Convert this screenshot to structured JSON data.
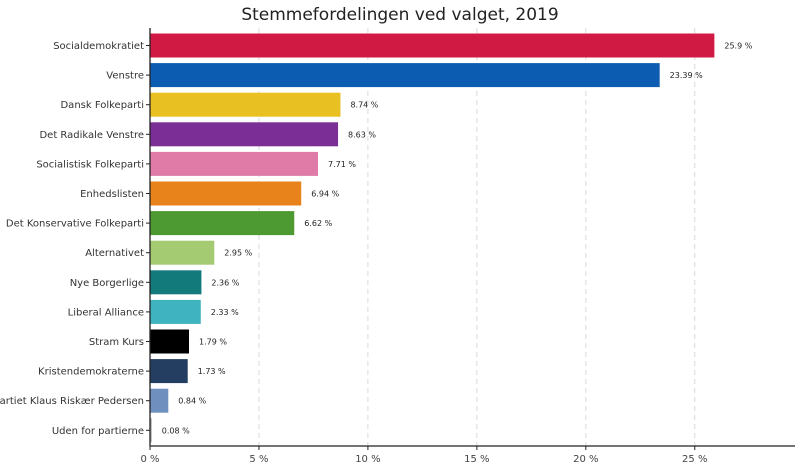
{
  "chart_data": {
    "type": "bar",
    "orientation": "horizontal",
    "title": "Stemmefordelingen ved valget, 2019",
    "xlabel": "",
    "ylabel": "",
    "xlim": [
      0,
      29.6
    ],
    "x_ticks": [
      0,
      5,
      10,
      15,
      20,
      25
    ],
    "x_tick_labels": [
      "0 %",
      "5 %",
      "10 %",
      "15 %",
      "20 %",
      "25 %"
    ],
    "grid": "vertical-dashed",
    "legend": "none",
    "value_suffix": " %",
    "categories": [
      "Socialdemokratiet",
      "Venstre",
      "Dansk Folkeparti",
      "Det Radikale Venstre",
      "Socialistisk Folkeparti",
      "Enhedslisten",
      "Det Konservative Folkeparti",
      "Alternativet",
      "Nye Borgerlige",
      "Liberal Alliance",
      "Stram Kurs",
      "Kristendemokraterne",
      "Partiet Klaus Riskær Pedersen",
      "Uden for partierne"
    ],
    "values": [
      25.9,
      23.39,
      8.74,
      8.63,
      7.71,
      6.94,
      6.62,
      2.95,
      2.36,
      2.33,
      1.79,
      1.73,
      0.84,
      0.08
    ],
    "colors": [
      "#d11a43",
      "#0c5db1",
      "#e8c021",
      "#7b2e95",
      "#e07ba8",
      "#e8821b",
      "#4e9a32",
      "#a5cb72",
      "#137a7c",
      "#3fb3c0",
      "#000000",
      "#233e61",
      "#6f8fbe",
      "#b0b0b0"
    ]
  }
}
